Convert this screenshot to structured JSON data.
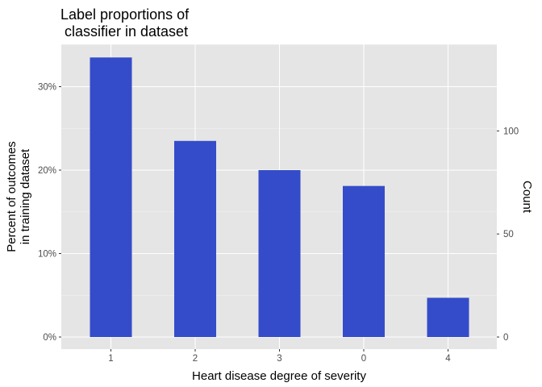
{
  "chart_data": {
    "type": "bar",
    "title_lines": [
      "Label proportions of",
      "classifier in dataset"
    ],
    "xlabel": "Heart disease degree of severity",
    "ylabel_lines": [
      "Percent of outcomes",
      "in training dataset"
    ],
    "y2label": "Count",
    "categories": [
      "1",
      "2",
      "3",
      "0",
      "4"
    ],
    "values": [
      0.335,
      0.235,
      0.2,
      0.181,
      0.047
    ],
    "ylim": [
      0,
      0.35
    ],
    "yticks": [
      0,
      0.1,
      0.2,
      0.3
    ],
    "ytick_labels": [
      "0%",
      "10%",
      "20%",
      "30%"
    ],
    "y2ticks": [
      0,
      50,
      100
    ],
    "y2ticks_percent_equivalent": [
      0,
      0.1235,
      0.247
    ],
    "grid": true,
    "legend": "none",
    "colors": {
      "bar": "#344CC9",
      "panel": "#E5E5E5",
      "grid_major": "#FFFFFF"
    }
  }
}
